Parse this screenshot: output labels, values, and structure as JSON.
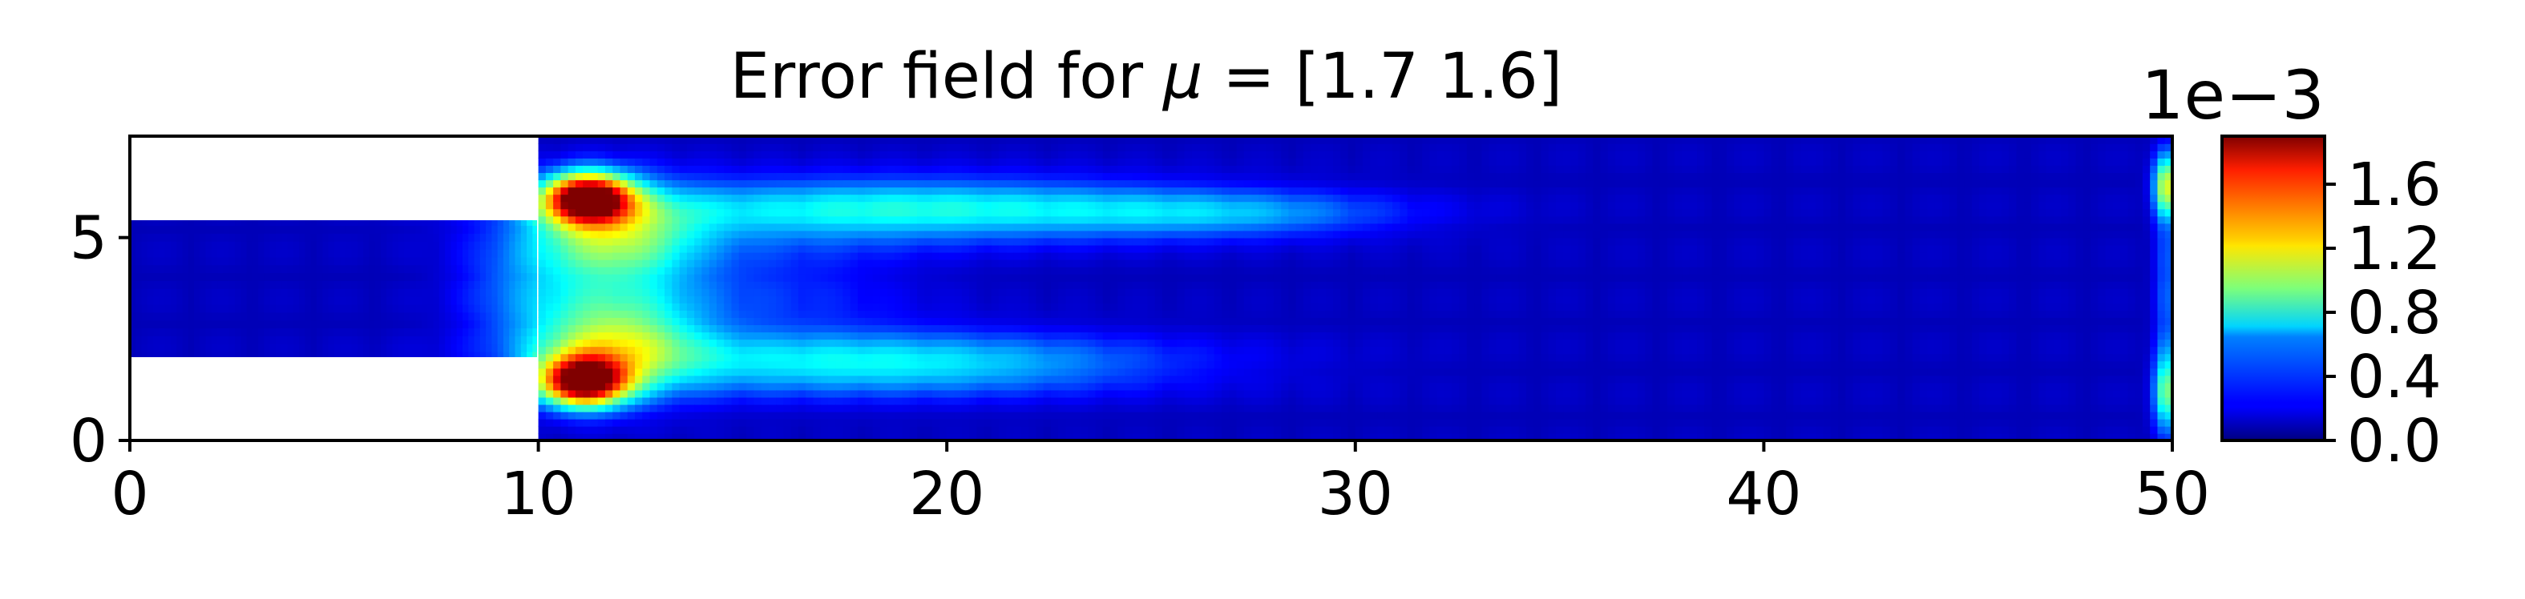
{
  "chart_data": {
    "type": "heatmap",
    "title_prefix": "Error field for ",
    "title_symbol": "μ",
    "title_suffix": " = [1.7 1.6]",
    "xlabel": "",
    "ylabel": "",
    "xlim": [
      0,
      50
    ],
    "ylim": [
      0,
      7.5
    ],
    "x_ticks": [
      0,
      10,
      20,
      30,
      40,
      50
    ],
    "x_tick_labels": [
      "0",
      "10",
      "20",
      "30",
      "40",
      "50"
    ],
    "y_ticks": [
      0,
      5
    ],
    "y_tick_labels": [
      "0",
      "5"
    ],
    "domain": {
      "inlet_channel": {
        "x": [
          0,
          10
        ],
        "y": [
          2,
          5.5
        ]
      },
      "main_channel": {
        "x": [
          10,
          50
        ],
        "y": [
          0,
          7.5
        ]
      }
    },
    "colormap": "jet",
    "colorbar": {
      "min": 0.0,
      "max": 1.9,
      "ticks": [
        0.0,
        0.4,
        0.8,
        1.2,
        1.6
      ],
      "tick_labels": [
        "0.0",
        "0.4",
        "0.8",
        "1.2",
        "1.6"
      ],
      "exponent_label": "1e−3"
    },
    "background_level": 0.12,
    "hotspots": [
      {
        "x": 11.2,
        "y": 6.0,
        "sx": 0.75,
        "sy": 0.42,
        "value": 1.75
      },
      {
        "x": 11.1,
        "y": 1.45,
        "sx": 0.75,
        "sy": 0.42,
        "value": 1.68
      },
      {
        "x": 11.8,
        "y": 5.0,
        "sx": 1.5,
        "sy": 0.9,
        "value": 0.8
      },
      {
        "x": 11.8,
        "y": 2.45,
        "sx": 1.5,
        "sy": 0.9,
        "value": 0.85
      },
      {
        "x": 19.0,
        "y": 5.7,
        "sx": 5.0,
        "sy": 0.55,
        "value": 0.62
      },
      {
        "x": 18.5,
        "y": 1.9,
        "sx": 4.8,
        "sy": 0.55,
        "value": 0.58
      },
      {
        "x": 27.0,
        "y": 5.6,
        "sx": 3.0,
        "sy": 0.4,
        "value": 0.34
      },
      {
        "x": 9.5,
        "y": 3.8,
        "sx": 1.1,
        "sy": 1.0,
        "value": 0.22
      },
      {
        "x": 15.5,
        "y": 3.7,
        "sx": 2.5,
        "sy": 1.2,
        "value": 0.2
      },
      {
        "x": 49.85,
        "y": 6.3,
        "sx": 0.22,
        "sy": 0.55,
        "value": 0.95
      },
      {
        "x": 49.85,
        "y": 1.2,
        "sx": 0.22,
        "sy": 0.7,
        "value": 0.75
      },
      {
        "x": 49.85,
        "y": 3.8,
        "sx": 0.2,
        "sy": 1.6,
        "value": 0.3
      }
    ]
  }
}
